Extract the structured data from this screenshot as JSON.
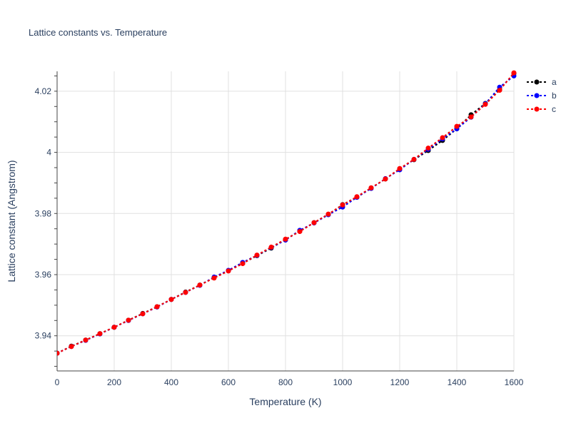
{
  "chart_data": {
    "type": "line",
    "title": "Lattice constants vs. Temperature",
    "xlabel": "Temperature (K)",
    "ylabel": "Lattice constant (Angstrom)",
    "xlim": [
      0,
      1600
    ],
    "ylim": [
      3.9285,
      4.0265
    ],
    "x_ticks": [
      0,
      200,
      400,
      600,
      800,
      1000,
      1200,
      1400,
      1600
    ],
    "x_tick_labels": [
      "0",
      "200",
      "400",
      "600",
      "800",
      "1000",
      "1200",
      "1400",
      "1600"
    ],
    "y_ticks": [
      3.94,
      3.96,
      3.98,
      4.0,
      4.02
    ],
    "y_tick_labels": [
      "3.94",
      "3.96",
      "3.98",
      "4",
      "4.02"
    ],
    "grid": true,
    "legend_position": "top-right",
    "x": [
      0,
      50,
      100,
      150,
      200,
      250,
      300,
      350,
      400,
      450,
      500,
      550,
      600,
      650,
      700,
      750,
      800,
      850,
      900,
      950,
      1000,
      1050,
      1100,
      1150,
      1200,
      1250,
      1300,
      1350,
      1400,
      1450,
      1500,
      1550,
      1600
    ],
    "series": [
      {
        "name": "a",
        "color": "#000000",
        "values": [
          3.9343,
          3.9366,
          3.9386,
          3.9407,
          3.9428,
          3.9451,
          3.9473,
          3.9495,
          3.9519,
          3.9543,
          3.9566,
          3.959,
          3.9613,
          3.9637,
          3.9662,
          3.9687,
          3.9715,
          3.9742,
          3.977,
          3.9797,
          3.9829,
          3.9853,
          3.9883,
          3.9913,
          3.9946,
          3.9976,
          4.0006,
          4.0039,
          4.0077,
          4.0123,
          4.016,
          4.0205,
          4.0258
        ]
      },
      {
        "name": "b",
        "color": "#0000ff",
        "values": [
          3.9343,
          3.9365,
          3.9385,
          3.9406,
          3.9428,
          3.945,
          3.9472,
          3.9494,
          3.9519,
          3.9542,
          3.9565,
          3.9592,
          3.9614,
          3.964,
          3.9663,
          3.9689,
          3.9713,
          3.9745,
          3.9769,
          3.9796,
          3.9821,
          3.9853,
          3.9882,
          3.9914,
          3.9943,
          3.9977,
          4.001,
          4.0044,
          4.0077,
          4.0115,
          4.0159,
          4.0213,
          4.025
        ]
      },
      {
        "name": "c",
        "color": "#ff0000",
        "values": [
          3.9343,
          3.9365,
          3.9386,
          3.9407,
          3.9428,
          3.9451,
          3.9472,
          3.9495,
          3.9519,
          3.9542,
          3.9566,
          3.9589,
          3.9612,
          3.9636,
          3.9664,
          3.969,
          3.9716,
          3.9741,
          3.977,
          3.9798,
          3.9828,
          3.9855,
          3.9884,
          3.9913,
          3.9947,
          3.9977,
          4.0014,
          4.0048,
          4.0085,
          4.0116,
          4.0157,
          4.0203,
          4.026
        ]
      }
    ]
  }
}
